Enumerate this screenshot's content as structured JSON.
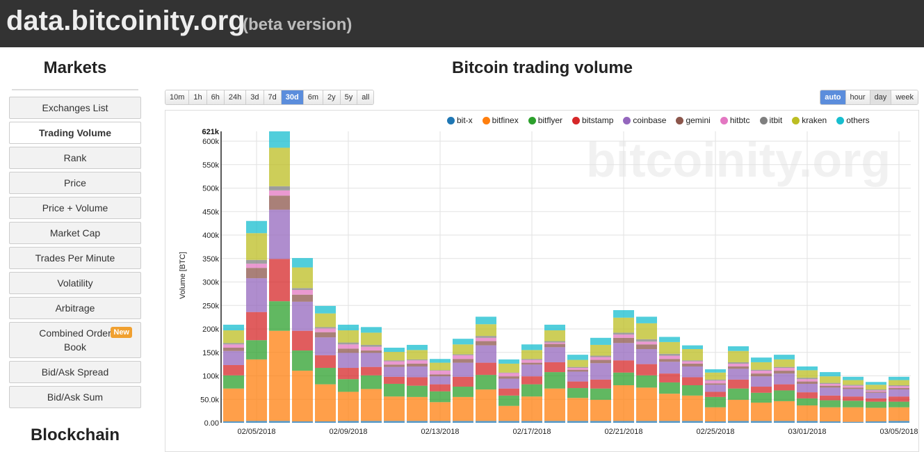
{
  "header": {
    "title": "data.bitcoinity.org",
    "subtitle": "(beta version)"
  },
  "sidebar": {
    "heading": "Markets",
    "items": [
      {
        "label": "Exchanges List"
      },
      {
        "label": "Trading Volume",
        "active": true
      },
      {
        "label": "Rank"
      },
      {
        "label": "Price"
      },
      {
        "label": "Price + Volume"
      },
      {
        "label": "Market Cap"
      },
      {
        "label": "Trades Per Minute"
      },
      {
        "label": "Volatility"
      },
      {
        "label": "Arbitrage"
      },
      {
        "label": "Combined Order Book",
        "badge": "New"
      },
      {
        "label": "Bid/Ask Spread"
      },
      {
        "label": "Bid/Ask Sum"
      }
    ],
    "heading2": "Blockchain"
  },
  "main": {
    "title": "Bitcoin trading volume",
    "timespans": [
      "10m",
      "1h",
      "6h",
      "24h",
      "3d",
      "7d",
      "30d",
      "6m",
      "2y",
      "5y",
      "all"
    ],
    "timespan_selected": "30d",
    "resolutions": [
      "auto",
      "hour",
      "day",
      "week"
    ],
    "resolution_selected": "auto",
    "watermark": "bitcoinity.org"
  },
  "chart_data": {
    "type": "bar",
    "stacked": true,
    "title": "",
    "ylabel": "Volume [BTC]",
    "xlabel": "",
    "ylim": [
      0,
      621000
    ],
    "ymax_label": "621k",
    "y_ticks": [
      "0.00",
      "50.0k",
      "100k",
      "150k",
      "200k",
      "250k",
      "300k",
      "350k",
      "400k",
      "450k",
      "500k",
      "550k",
      "600k"
    ],
    "x_tick_labels": [
      "02/05/2018",
      "02/09/2018",
      "02/13/2018",
      "02/17/2018",
      "02/21/2018",
      "02/25/2018",
      "03/01/2018",
      "03/05/2018"
    ],
    "grid": true,
    "legend_position": "top",
    "categories": [
      "02/04/2018",
      "02/05/2018",
      "02/06/2018",
      "02/07/2018",
      "02/08/2018",
      "02/09/2018",
      "02/10/2018",
      "02/11/2018",
      "02/12/2018",
      "02/13/2018",
      "02/14/2018",
      "02/15/2018",
      "02/16/2018",
      "02/17/2018",
      "02/18/2018",
      "02/19/2018",
      "02/20/2018",
      "02/21/2018",
      "02/22/2018",
      "02/23/2018",
      "02/24/2018",
      "02/25/2018",
      "02/26/2018",
      "02/27/2018",
      "02/28/2018",
      "03/01/2018",
      "03/02/2018",
      "03/03/2018",
      "03/04/2018",
      "03/05/2018"
    ],
    "series": [
      {
        "name": "bit-x",
        "color": "#1f77b4",
        "values": [
          3000,
          4000,
          4000,
          3000,
          3000,
          4000,
          4000,
          4000,
          4000,
          4000,
          4000,
          4000,
          4000,
          4000,
          4000,
          4000,
          4000,
          4000,
          4000,
          4000,
          4000,
          3000,
          4000,
          4000,
          4000,
          4000,
          3000,
          2000,
          3000,
          4000
        ]
      },
      {
        "name": "bitfinex",
        "color": "#ff7f0e",
        "values": [
          70000,
          131000,
          192000,
          108000,
          79000,
          62000,
          68000,
          52000,
          51000,
          40000,
          51000,
          67000,
          32000,
          52000,
          69000,
          49000,
          45000,
          76000,
          71000,
          58000,
          54000,
          30000,
          45000,
          39000,
          42000,
          33000,
          30000,
          31000,
          29000,
          29000
        ]
      },
      {
        "name": "bitflyer",
        "color": "#2ca02c",
        "values": [
          28000,
          41000,
          63000,
          43000,
          35000,
          27000,
          29000,
          27000,
          24000,
          23000,
          22000,
          31000,
          22000,
          26000,
          35000,
          21000,
          24000,
          27000,
          26000,
          24000,
          22000,
          22000,
          24000,
          21000,
          23000,
          15000,
          15000,
          14000,
          13000,
          12000
        ]
      },
      {
        "name": "bitstamp",
        "color": "#d62728",
        "values": [
          22000,
          60000,
          90000,
          42000,
          27000,
          24000,
          18000,
          15000,
          18000,
          15000,
          21000,
          26000,
          15000,
          17000,
          21000,
          14000,
          19000,
          26000,
          24000,
          19000,
          17000,
          11000,
          19000,
          13000,
          13000,
          13000,
          10000,
          9000,
          7000,
          11000
        ]
      },
      {
        "name": "coinbase",
        "color": "#9467bd",
        "values": [
          30000,
          72000,
          105000,
          62000,
          38000,
          32000,
          30000,
          21000,
          23000,
          17000,
          30000,
          37000,
          21000,
          25000,
          32000,
          21000,
          35000,
          37000,
          32000,
          25000,
          23000,
          15000,
          23000,
          22000,
          23000,
          18000,
          17000,
          16000,
          12000,
          15000
        ]
      },
      {
        "name": "gemini",
        "color": "#8c564b",
        "values": [
          7000,
          22000,
          30000,
          15000,
          11000,
          9000,
          5000,
          5000,
          6000,
          4000,
          8000,
          9000,
          5000,
          4000,
          7000,
          4000,
          7000,
          11000,
          10000,
          6000,
          6000,
          3000,
          5000,
          6000,
          6000,
          5000,
          4000,
          3000,
          2000,
          3000
        ]
      },
      {
        "name": "hitbtc",
        "color": "#e377c2",
        "values": [
          7000,
          9000,
          11000,
          10000,
          8000,
          9000,
          8000,
          7000,
          7000,
          8000,
          8000,
          7000,
          7000,
          6000,
          3000,
          4000,
          6000,
          7000,
          6000,
          7000,
          5000,
          6000,
          6000,
          6000,
          6000,
          5000,
          4000,
          4000,
          3000,
          4000
        ]
      },
      {
        "name": "itbit",
        "color": "#7f7f7f",
        "values": [
          3000,
          8000,
          9000,
          4000,
          3000,
          4000,
          4000,
          2000,
          2000,
          1000,
          2000,
          4000,
          1000,
          2000,
          3000,
          2000,
          3000,
          4000,
          5000,
          4000,
          2000,
          2000,
          3000,
          2000,
          2000,
          3000,
          2000,
          2000,
          2000,
          2000
        ]
      },
      {
        "name": "kraken",
        "color": "#bcbd22",
        "values": [
          27000,
          57000,
          82000,
          44000,
          29000,
          26000,
          26000,
          18000,
          20000,
          16000,
          21000,
          25000,
          19000,
          19000,
          23000,
          15000,
          23000,
          32000,
          34000,
          25000,
          24000,
          15000,
          24000,
          16000,
          16000,
          16000,
          14000,
          10000,
          10000,
          11000
        ]
      },
      {
        "name": "others",
        "color": "#17becf",
        "values": [
          12000,
          26000,
          35000,
          20000,
          16000,
          12000,
          12000,
          9000,
          11000,
          8000,
          12000,
          16000,
          9000,
          12000,
          12000,
          11000,
          15000,
          16000,
          14000,
          11000,
          8000,
          7000,
          10000,
          10000,
          10000,
          8000,
          9000,
          7000,
          6000,
          7000
        ]
      }
    ]
  }
}
